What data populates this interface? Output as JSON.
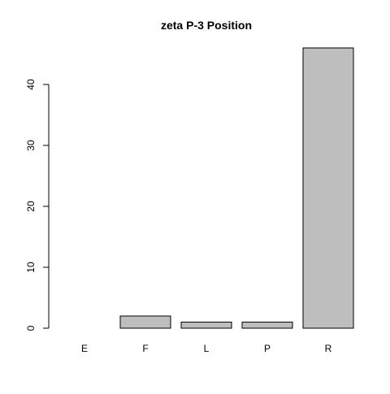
{
  "chart_data": {
    "type": "bar",
    "title": "zeta P-3 Position",
    "categories": [
      "E",
      "F",
      "L",
      "P",
      "R"
    ],
    "values": [
      0,
      2,
      1,
      1,
      46
    ],
    "ylim": [
      0,
      46
    ],
    "yticks": [
      0,
      10,
      20,
      30,
      40
    ],
    "xlabel": "",
    "ylabel": "",
    "grid": false,
    "legend": "none",
    "bar_fill": "#bebebe",
    "bar_stroke": "#000000"
  }
}
